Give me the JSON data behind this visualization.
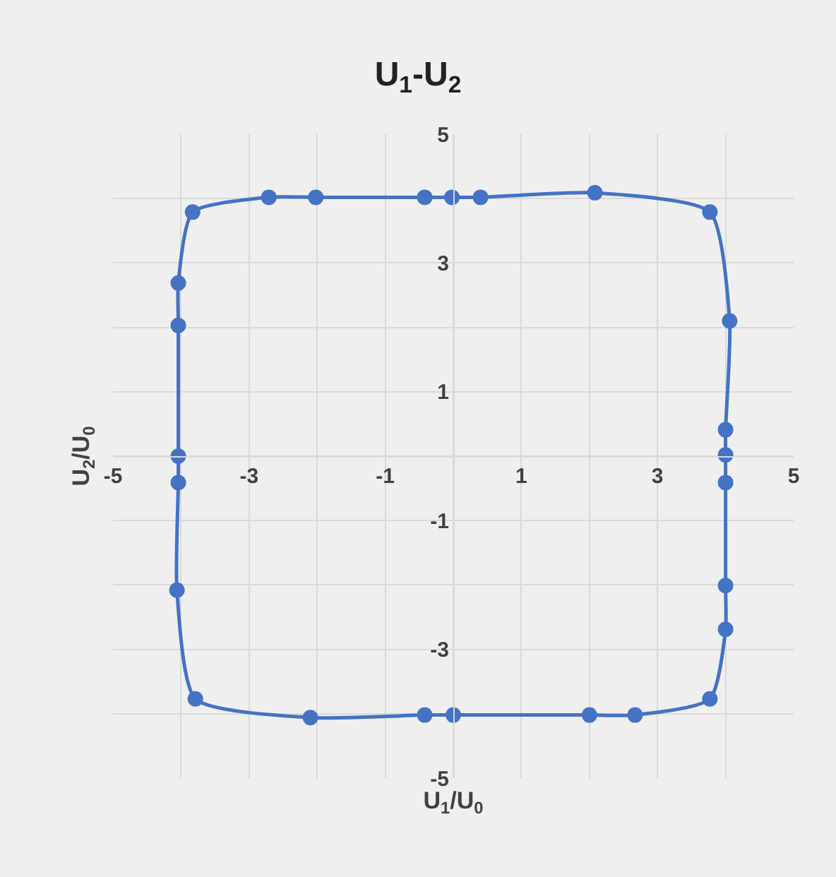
{
  "chart_data": {
    "type": "scatter",
    "title": "U$_{1}$-U$_{2}$",
    "xlabel": "U$_{1}$/U$_{0}$",
    "ylabel": "U$_{2}$/U$_{0}$",
    "x": [
      -3.83,
      -2.71,
      -2.02,
      -0.42,
      -0.02,
      0.4,
      2.08,
      3.77,
      4.06,
      4.0,
      4.0,
      4.0,
      4.0,
      4.0,
      3.77,
      2.67,
      2.0,
      0.0,
      -0.42,
      -2.1,
      -3.79,
      -4.06,
      -4.04,
      -4.04,
      -4.04,
      -4.04
    ],
    "series": [
      {
        "color": "#4472c4",
        "values": [
          3.79,
          4.02,
          4.02,
          4.02,
          4.02,
          4.02,
          4.09,
          3.79,
          2.1,
          0.41,
          0.02,
          -0.41,
          -2.01,
          -2.69,
          -3.77,
          -4.02,
          -4.02,
          -4.02,
          -4.02,
          -4.06,
          -3.77,
          -2.08,
          -0.41,
          0.0,
          2.03,
          2.69
        ]
      }
    ],
    "xlim": [
      -5,
      5
    ],
    "ylim": [
      -5,
      5
    ],
    "xticks": [
      -5,
      {
        "value": -4,
        "label": null
      },
      -3,
      {
        "value": -2,
        "label": null
      },
      -1,
      {
        "value": 0,
        "label": null
      },
      1,
      {
        "value": 2,
        "label": null
      },
      3,
      {
        "value": 4,
        "label": null
      },
      5
    ],
    "yticks": [
      -5,
      {
        "value": -4,
        "label": null
      },
      -3,
      {
        "value": -2,
        "label": null
      },
      -1,
      {
        "value": 0,
        "label": null
      },
      1,
      {
        "value": 2,
        "label": null
      },
      3,
      {
        "value": 4,
        "label": null
      },
      5
    ],
    "grid": true,
    "marker": "circle",
    "line_style": "solid",
    "legend": false
  }
}
